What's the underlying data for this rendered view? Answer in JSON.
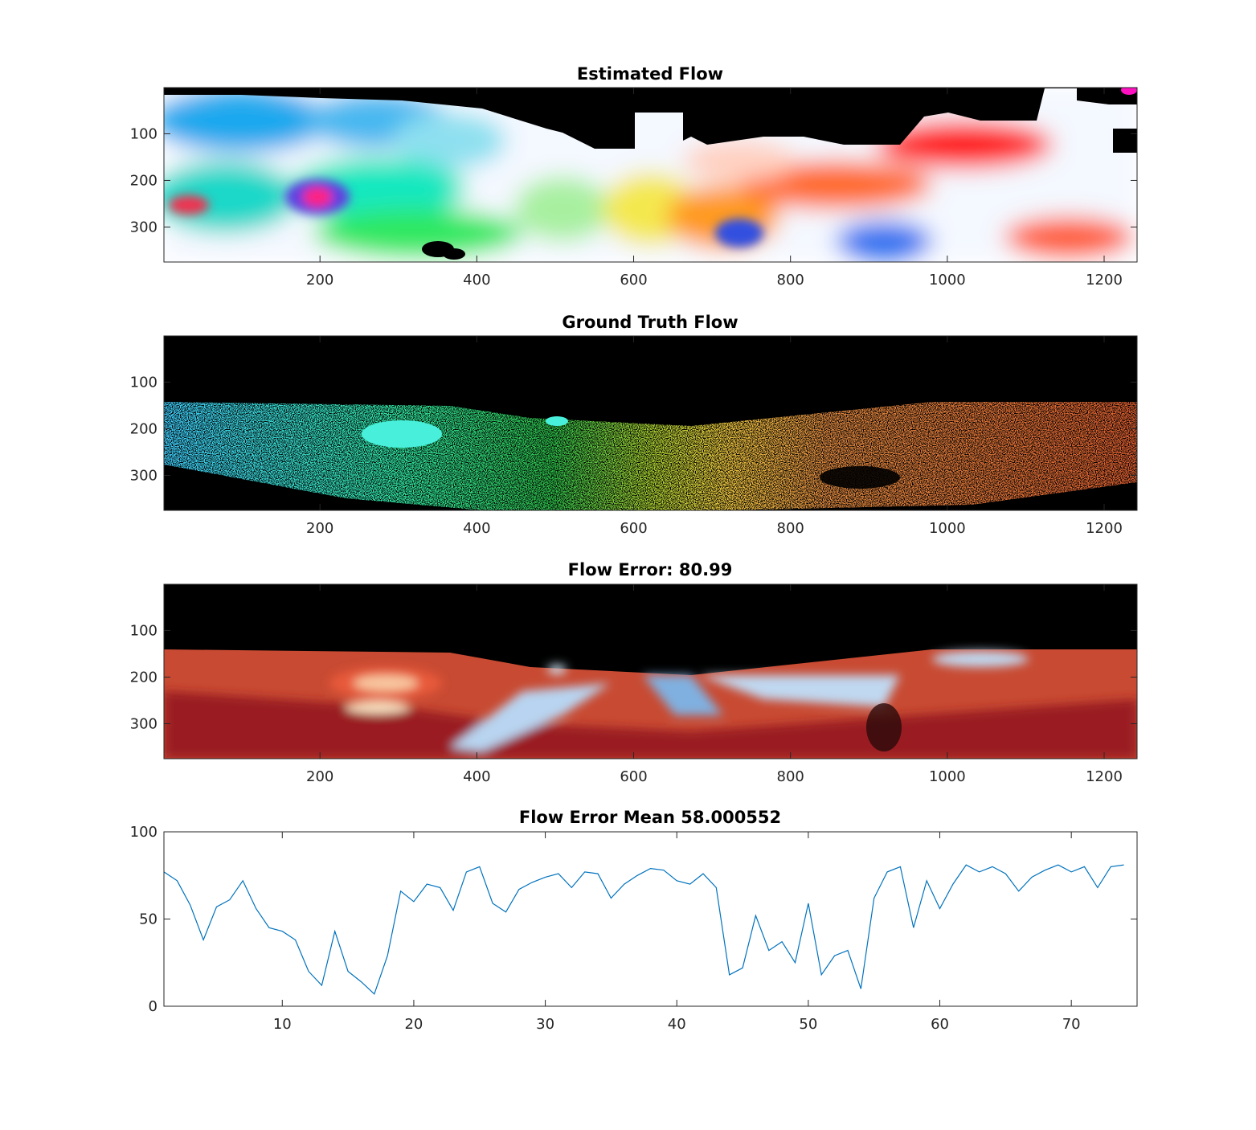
{
  "figure": {
    "background": "#ffffff",
    "axes_color": "#262626",
    "panels": [
      {
        "id": "estimated",
        "title": "Estimated Flow",
        "kind": "image",
        "xlim": [
          1,
          1242
        ],
        "ylim": [
          1,
          375
        ],
        "xticks": [
          200,
          400,
          600,
          800,
          1000,
          1200
        ],
        "yticks": [
          100,
          200,
          300
        ]
      },
      {
        "id": "ground-truth",
        "title": "Ground Truth Flow",
        "kind": "image",
        "xlim": [
          1,
          1242
        ],
        "ylim": [
          1,
          375
        ],
        "xticks": [
          200,
          400,
          600,
          800,
          1000,
          1200
        ],
        "yticks": [
          100,
          200,
          300
        ]
      },
      {
        "id": "error-map",
        "title": "Flow Error: 80.99",
        "kind": "image",
        "xlim": [
          1,
          1242
        ],
        "ylim": [
          1,
          375
        ],
        "xticks": [
          200,
          400,
          600,
          800,
          1000,
          1200
        ],
        "yticks": [
          100,
          200,
          300
        ]
      }
    ]
  },
  "chart_data": [
    {
      "type": "heatmap",
      "title": "Estimated Flow",
      "xlim": [
        1,
        1242
      ],
      "ylim": [
        1,
        375
      ],
      "y_reversed": true,
      "xticks": [
        200,
        400,
        600,
        800,
        1000,
        1200
      ],
      "yticks": [
        100,
        200,
        300
      ]
    },
    {
      "type": "heatmap",
      "title": "Ground Truth Flow",
      "xlim": [
        1,
        1242
      ],
      "ylim": [
        1,
        375
      ],
      "y_reversed": true,
      "xticks": [
        200,
        400,
        600,
        800,
        1000,
        1200
      ],
      "yticks": [
        100,
        200,
        300
      ]
    },
    {
      "type": "heatmap",
      "title": "Flow Error: 80.99",
      "xlim": [
        1,
        1242
      ],
      "ylim": [
        1,
        375
      ],
      "y_reversed": true,
      "xticks": [
        200,
        400,
        600,
        800,
        1000,
        1200
      ],
      "yticks": [
        100,
        200,
        300
      ]
    },
    {
      "type": "line",
      "title": "Flow Error Mean 58.000552",
      "xlim": [
        1,
        75
      ],
      "ylim": [
        0,
        100
      ],
      "xticks": [
        10,
        20,
        30,
        40,
        50,
        60,
        70
      ],
      "yticks": [
        0,
        50,
        100
      ],
      "grid": false,
      "series": [
        {
          "color": "#0072bd",
          "x": [
            1,
            2,
            3,
            4,
            5,
            6,
            7,
            8,
            9,
            10,
            11,
            12,
            13,
            14,
            15,
            16,
            17,
            18,
            19,
            20,
            21,
            22,
            23,
            24,
            25,
            26,
            27,
            28,
            29,
            30,
            31,
            32,
            33,
            34,
            35,
            36,
            37,
            38,
            39,
            40,
            41,
            42,
            43,
            44,
            45,
            46,
            47,
            48,
            49,
            50,
            51,
            52,
            53,
            54,
            55,
            56,
            57,
            58,
            59,
            60,
            61,
            62,
            63,
            64,
            65,
            66,
            67,
            68,
            69,
            70,
            71,
            72,
            73,
            74
          ],
          "y": [
            77,
            72,
            58,
            38,
            57,
            61,
            72,
            56,
            45,
            43,
            38,
            20,
            12,
            43,
            20,
            14,
            7,
            29,
            66,
            60,
            70,
            68,
            55,
            77,
            80,
            59,
            54,
            67,
            71,
            74,
            76,
            68,
            77,
            76,
            62,
            70,
            75,
            79,
            78,
            72,
            70,
            76,
            68,
            18,
            22,
            52,
            32,
            37,
            25,
            59,
            18,
            29,
            32,
            10,
            62,
            77,
            80,
            45,
            72,
            56,
            70,
            81,
            77,
            80,
            76,
            66,
            74,
            78,
            81,
            77,
            80,
            68,
            80,
            81
          ]
        }
      ]
    }
  ]
}
